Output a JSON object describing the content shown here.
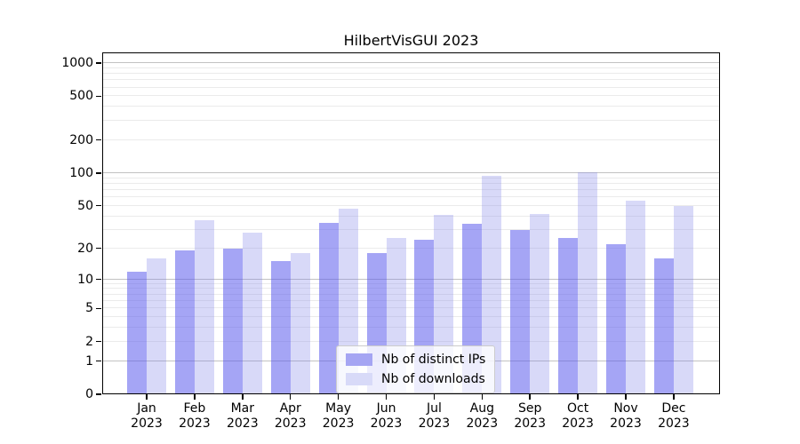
{
  "title": "HilbertVisGUI 2023",
  "chart_data": {
    "type": "bar",
    "title": "HilbertVisGUI 2023",
    "yscale": "log1p",
    "grid": true,
    "legend_position": "lower center",
    "categories": [
      "Jan",
      "Feb",
      "Mar",
      "Apr",
      "May",
      "Jun",
      "Jul",
      "Aug",
      "Sep",
      "Oct",
      "Nov",
      "Dec"
    ],
    "year_label": "2023",
    "series": [
      {
        "name": "Nb of distinct IPs",
        "color": "#a5a5f3",
        "values": [
          12,
          19,
          20,
          15,
          35,
          18,
          24,
          34,
          30,
          25,
          22,
          16
        ]
      },
      {
        "name": "Nb of downloads",
        "color": "#d8daf8",
        "values": [
          16,
          37,
          28,
          18,
          47,
          25,
          41,
          95,
          42,
          102,
          56,
          50
        ]
      }
    ],
    "yticks": [
      0,
      1,
      2,
      5,
      10,
      20,
      50,
      100,
      200,
      500,
      1000
    ],
    "ylim": [
      0,
      1250
    ],
    "xlabel": "",
    "ylabel": ""
  },
  "colors": {
    "bar_ips": "#a5a5f3",
    "bar_downloads": "#d8daf8",
    "grid_major": "#c2c2c2",
    "grid_minor": "#ebebeb",
    "axis": "#000000",
    "legend_border": "#cccccc"
  }
}
